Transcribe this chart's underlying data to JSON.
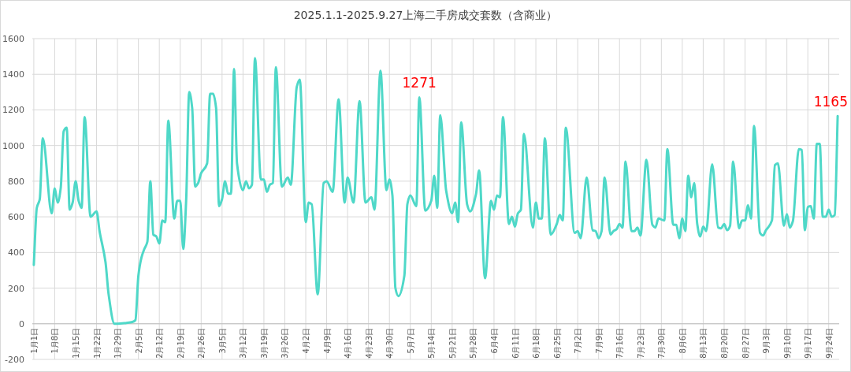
{
  "chart_data": {
    "type": "line",
    "title": "2025.1.1-2025.9.27上海二手房成交套数（含商业）",
    "color": "#4fd8c8",
    "grid": true,
    "xlim": [
      "2024-12-31T12:00",
      "2025-09-27T12:00"
    ],
    "ylim": [
      -200,
      1600
    ],
    "yticks": [
      -200,
      0,
      200,
      400,
      600,
      800,
      1000,
      1200,
      1400,
      1600
    ],
    "xticks": [
      {
        "value": "2025-01-01",
        "label": "1月1日"
      },
      {
        "value": "2025-01-08",
        "label": "1月8日"
      },
      {
        "value": "2025-01-15",
        "label": "1月15日"
      },
      {
        "value": "2025-01-22",
        "label": "1月22日"
      },
      {
        "value": "2025-01-29",
        "label": "1月29日"
      },
      {
        "value": "2025-02-05",
        "label": "2月5日"
      },
      {
        "value": "2025-02-12",
        "label": "2月12日"
      },
      {
        "value": "2025-02-19",
        "label": "2月19日"
      },
      {
        "value": "2025-02-26",
        "label": "2月26日"
      },
      {
        "value": "2025-03-05",
        "label": "3月5日"
      },
      {
        "value": "2025-03-12",
        "label": "3月12日"
      },
      {
        "value": "2025-03-19",
        "label": "3月19日"
      },
      {
        "value": "2025-03-26",
        "label": "3月26日"
      },
      {
        "value": "2025-04-02",
        "label": "4月2日"
      },
      {
        "value": "2025-04-09",
        "label": "4月9日"
      },
      {
        "value": "2025-04-16",
        "label": "4月16日"
      },
      {
        "value": "2025-04-23",
        "label": "4月23日"
      },
      {
        "value": "2025-04-30",
        "label": "4月30日"
      },
      {
        "value": "2025-05-07",
        "label": "5月7日"
      },
      {
        "value": "2025-05-14",
        "label": "5月14日"
      },
      {
        "value": "2025-05-21",
        "label": "5月21日"
      },
      {
        "value": "2025-05-28",
        "label": "5月28日"
      },
      {
        "value": "2025-06-04",
        "label": "6月4日"
      },
      {
        "value": "2025-06-11",
        "label": "6月11日"
      },
      {
        "value": "2025-06-18",
        "label": "6月18日"
      },
      {
        "value": "2025-06-25",
        "label": "6月25日"
      },
      {
        "value": "2025-07-02",
        "label": "7月2日"
      },
      {
        "value": "2025-07-09",
        "label": "7月9日"
      },
      {
        "value": "2025-07-16",
        "label": "7月16日"
      },
      {
        "value": "2025-07-23",
        "label": "7月23日"
      },
      {
        "value": "2025-07-30",
        "label": "7月30日"
      },
      {
        "value": "2025-08-06",
        "label": "8月6日"
      },
      {
        "value": "2025-08-13",
        "label": "8月13日"
      },
      {
        "value": "2025-08-20",
        "label": "8月20日"
      },
      {
        "value": "2025-08-27",
        "label": "8月27日"
      },
      {
        "value": "2025-09-03",
        "label": "9月3日"
      },
      {
        "value": "2025-09-10",
        "label": "9月10日"
      },
      {
        "value": "2025-09-17",
        "label": "9月17日"
      },
      {
        "value": "2025-09-24",
        "label": "9月24日"
      }
    ],
    "annotations": [
      {
        "text": "1271",
        "x": "2025-05-10",
        "y": 1271
      },
      {
        "text": "1165",
        "x": "2025-09-27",
        "y": 1165
      }
    ],
    "x": [
      "2025-01-01",
      "2025-01-02",
      "2025-01-03",
      "2025-01-04",
      "2025-01-07",
      "2025-01-08",
      "2025-01-09",
      "2025-01-10",
      "2025-01-11",
      "2025-01-12",
      "2025-01-13",
      "2025-01-14",
      "2025-01-15",
      "2025-01-16",
      "2025-01-17",
      "2025-01-18",
      "2025-01-20",
      "2025-01-22",
      "2025-01-23",
      "2025-01-25",
      "2025-01-26",
      "2025-01-28",
      "2025-01-29",
      "2025-02-01",
      "2025-02-03",
      "2025-02-04",
      "2025-02-05",
      "2025-02-06",
      "2025-02-07",
      "2025-02-08",
      "2025-02-09",
      "2025-02-10",
      "2025-02-11",
      "2025-02-12",
      "2025-02-13",
      "2025-02-14",
      "2025-02-15",
      "2025-02-17",
      "2025-02-18",
      "2025-02-19",
      "2025-02-20",
      "2025-02-21",
      "2025-02-22",
      "2025-02-23",
      "2025-02-24",
      "2025-02-25",
      "2025-02-26",
      "2025-02-28",
      "2025-03-01",
      "2025-03-02",
      "2025-03-03",
      "2025-03-04",
      "2025-03-05",
      "2025-03-06",
      "2025-03-07",
      "2025-03-08",
      "2025-03-09",
      "2025-03-10",
      "2025-03-12",
      "2025-03-13",
      "2025-03-14",
      "2025-03-15",
      "2025-03-16",
      "2025-03-18",
      "2025-03-19",
      "2025-03-20",
      "2025-03-21",
      "2025-03-22",
      "2025-03-23",
      "2025-03-25",
      "2025-03-27",
      "2025-03-28",
      "2025-03-30",
      "2025-03-31",
      "2025-04-02",
      "2025-04-03",
      "2025-04-04",
      "2025-04-06",
      "2025-04-08",
      "2025-04-09",
      "2025-04-11",
      "2025-04-13",
      "2025-04-15",
      "2025-04-16",
      "2025-04-18",
      "2025-04-20",
      "2025-04-22",
      "2025-04-24",
      "2025-04-25",
      "2025-04-27",
      "2025-04-29",
      "2025-04-30",
      "2025-05-01",
      "2025-05-02",
      "2025-05-03",
      "2025-05-05",
      "2025-05-06",
      "2025-05-07",
      "2025-05-09",
      "2025-05-10",
      "2025-05-12",
      "2025-05-14",
      "2025-05-15",
      "2025-05-16",
      "2025-05-17",
      "2025-05-19",
      "2025-05-21",
      "2025-05-22",
      "2025-05-23",
      "2025-05-24",
      "2025-05-26",
      "2025-05-27",
      "2025-05-29",
      "2025-05-30",
      "2025-06-01",
      "2025-06-03",
      "2025-06-04",
      "2025-06-05",
      "2025-06-06",
      "2025-06-07",
      "2025-06-09",
      "2025-06-10",
      "2025-06-11",
      "2025-06-12",
      "2025-06-13",
      "2025-06-14",
      "2025-06-17",
      "2025-06-18",
      "2025-06-19",
      "2025-06-20",
      "2025-06-21",
      "2025-06-23",
      "2025-06-25",
      "2025-06-26",
      "2025-06-27",
      "2025-06-28",
      "2025-07-01",
      "2025-07-02",
      "2025-07-03",
      "2025-07-05",
      "2025-07-07",
      "2025-07-08",
      "2025-07-09",
      "2025-07-10",
      "2025-07-11",
      "2025-07-13",
      "2025-07-14",
      "2025-07-15",
      "2025-07-16",
      "2025-07-17",
      "2025-07-18",
      "2025-07-20",
      "2025-07-21",
      "2025-07-22",
      "2025-07-23",
      "2025-07-25",
      "2025-07-27",
      "2025-07-28",
      "2025-07-29",
      "2025-07-31",
      "2025-08-01",
      "2025-08-03",
      "2025-08-04",
      "2025-08-05",
      "2025-08-06",
      "2025-08-07",
      "2025-08-08",
      "2025-08-09",
      "2025-08-10",
      "2025-08-11",
      "2025-08-12",
      "2025-08-13",
      "2025-08-14",
      "2025-08-16",
      "2025-08-18",
      "2025-08-19",
      "2025-08-20",
      "2025-08-21",
      "2025-08-22",
      "2025-08-23",
      "2025-08-25",
      "2025-08-26",
      "2025-08-27",
      "2025-08-28",
      "2025-08-29",
      "2025-08-30",
      "2025-09-01",
      "2025-09-02",
      "2025-09-03",
      "2025-09-05",
      "2025-09-06",
      "2025-09-07",
      "2025-09-09",
      "2025-09-10",
      "2025-09-11",
      "2025-09-12",
      "2025-09-14",
      "2025-09-15",
      "2025-09-16",
      "2025-09-17",
      "2025-09-18",
      "2025-09-19",
      "2025-09-20",
      "2025-09-21",
      "2025-09-22",
      "2025-09-23",
      "2025-09-24",
      "2025-09-25",
      "2025-09-26",
      "2025-09-27"
    ],
    "values": [
      330,
      650,
      700,
      1040,
      620,
      760,
      680,
      760,
      1080,
      1100,
      640,
      680,
      800,
      690,
      650,
      1160,
      600,
      630,
      520,
      345,
      170,
      0,
      0,
      5,
      10,
      20,
      270,
      370,
      420,
      460,
      800,
      500,
      490,
      450,
      580,
      570,
      1140,
      590,
      690,
      690,
      420,
      700,
      1300,
      1210,
      770,
      790,
      845,
      900,
      1290,
      1290,
      1210,
      660,
      700,
      800,
      730,
      730,
      1430,
      900,
      750,
      800,
      760,
      780,
      1490,
      810,
      810,
      740,
      780,
      790,
      1440,
      770,
      820,
      780,
      1330,
      1370,
      570,
      680,
      670,
      165,
      790,
      800,
      740,
      1260,
      680,
      820,
      680,
      1250,
      680,
      710,
      640,
      1420,
      750,
      810,
      720,
      200,
      155,
      270,
      670,
      720,
      660,
      1271,
      635,
      690,
      830,
      650,
      1170,
      745,
      620,
      680,
      570,
      1130,
      670,
      630,
      730,
      860,
      255,
      690,
      640,
      720,
      710,
      1160,
      560,
      600,
      545,
      620,
      640,
      1065,
      540,
      680,
      590,
      590,
      1040,
      500,
      560,
      610,
      580,
      1100,
      510,
      520,
      480,
      820,
      525,
      520,
      480,
      520,
      820,
      500,
      520,
      530,
      560,
      540,
      910,
      520,
      520,
      540,
      495,
      920,
      555,
      540,
      590,
      580,
      980,
      555,
      555,
      480,
      590,
      520,
      830,
      710,
      790,
      560,
      490,
      545,
      520,
      895,
      540,
      535,
      560,
      525,
      550,
      910,
      535,
      580,
      580,
      665,
      590,
      1110,
      510,
      495,
      525,
      580,
      890,
      900,
      550,
      615,
      540,
      575,
      980,
      975,
      525,
      655,
      660,
      590,
      1010,
      1010,
      600,
      600,
      640,
      600,
      610,
      1165
    ]
  }
}
